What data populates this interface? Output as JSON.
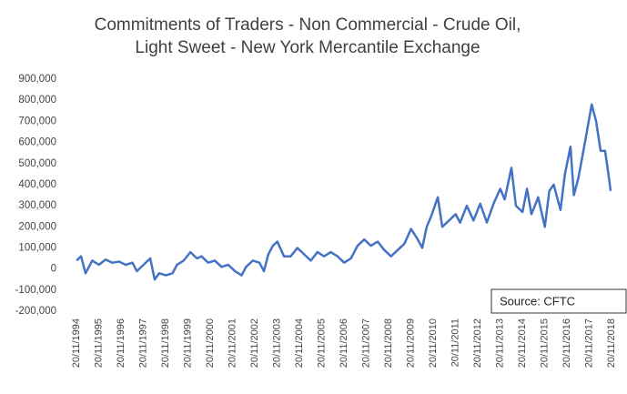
{
  "chart_data": {
    "type": "line",
    "title": [
      "Commitments of Traders - Non Commercial - Crude Oil,",
      "Light Sweet - New York Mercantile Exchange"
    ],
    "annotation": "Source: CFTC",
    "x": [
      1994.9,
      1995.1,
      1995.3,
      1995.6,
      1995.9,
      1996.2,
      1996.5,
      1996.8,
      1997.1,
      1997.4,
      1997.6,
      1997.9,
      1998.2,
      1998.4,
      1998.6,
      1998.9,
      1999.2,
      1999.4,
      1999.7,
      2000.0,
      2000.3,
      2000.5,
      2000.8,
      2001.1,
      2001.4,
      2001.7,
      2002.0,
      2002.3,
      2002.5,
      2002.8,
      2003.1,
      2003.3,
      2003.5,
      2003.7,
      2003.9,
      2004.2,
      2004.5,
      2004.8,
      2005.1,
      2005.4,
      2005.7,
      2006.0,
      2006.3,
      2006.6,
      2006.9,
      2007.2,
      2007.5,
      2007.8,
      2008.1,
      2008.4,
      2008.7,
      2009.0,
      2009.3,
      2009.6,
      2009.9,
      2010.2,
      2010.4,
      2010.6,
      2010.8,
      2011.1,
      2011.3,
      2011.6,
      2011.9,
      2012.1,
      2012.4,
      2012.7,
      2013.0,
      2013.3,
      2013.6,
      2013.9,
      2014.1,
      2014.3,
      2014.4,
      2014.6,
      2014.9,
      2015.1,
      2015.3,
      2015.6,
      2015.9,
      2016.1,
      2016.3,
      2016.6,
      2016.8,
      2017.05,
      2017.2,
      2017.4,
      2017.7,
      2018.0,
      2018.2,
      2018.4,
      2018.6,
      2018.75,
      2018.85
    ],
    "series": [
      {
        "name": "Non Commercial",
        "color": "#4472c4",
        "values": [
          40000,
          60000,
          -20000,
          40000,
          20000,
          45000,
          30000,
          35000,
          20000,
          30000,
          -10000,
          20000,
          50000,
          -50000,
          -20000,
          -30000,
          -20000,
          20000,
          40000,
          80000,
          50000,
          60000,
          30000,
          40000,
          10000,
          20000,
          -10000,
          -30000,
          10000,
          40000,
          30000,
          -10000,
          70000,
          110000,
          130000,
          60000,
          60000,
          100000,
          70000,
          40000,
          80000,
          60000,
          80000,
          60000,
          30000,
          50000,
          110000,
          140000,
          110000,
          130000,
          90000,
          60000,
          90000,
          120000,
          190000,
          140000,
          100000,
          200000,
          250000,
          340000,
          200000,
          230000,
          260000,
          220000,
          300000,
          230000,
          310000,
          220000,
          310000,
          380000,
          330000,
          430000,
          480000,
          300000,
          270000,
          380000,
          260000,
          340000,
          200000,
          370000,
          400000,
          280000,
          450000,
          580000,
          350000,
          430000,
          600000,
          780000,
          700000,
          560000,
          560000,
          450000,
          370000
        ]
      }
    ],
    "xlim": [
      1994.89,
      2018.89
    ],
    "xticks": [
      {
        "value": 1994.89,
        "label": "20/11/1994"
      },
      {
        "value": 1995.89,
        "label": "20/11/1995"
      },
      {
        "value": 1996.89,
        "label": "20/11/1996"
      },
      {
        "value": 1997.89,
        "label": "20/11/1997"
      },
      {
        "value": 1998.89,
        "label": "20/11/1998"
      },
      {
        "value": 1999.89,
        "label": "20/11/1999"
      },
      {
        "value": 2000.89,
        "label": "20/11/2000"
      },
      {
        "value": 2001.89,
        "label": "20/11/2001"
      },
      {
        "value": 2002.89,
        "label": "20/11/2002"
      },
      {
        "value": 2003.89,
        "label": "20/11/2003"
      },
      {
        "value": 2004.89,
        "label": "20/11/2004"
      },
      {
        "value": 2005.89,
        "label": "20/11/2005"
      },
      {
        "value": 2006.89,
        "label": "20/11/2006"
      },
      {
        "value": 2007.89,
        "label": "20/11/2007"
      },
      {
        "value": 2008.89,
        "label": "20/11/2008"
      },
      {
        "value": 2009.89,
        "label": "20/11/2009"
      },
      {
        "value": 2010.89,
        "label": "20/11/2010"
      },
      {
        "value": 2011.89,
        "label": "20/11/2011"
      },
      {
        "value": 2012.89,
        "label": "20/11/2012"
      },
      {
        "value": 2013.89,
        "label": "20/11/2013"
      },
      {
        "value": 2014.89,
        "label": "20/11/2014"
      },
      {
        "value": 2015.89,
        "label": "20/11/2015"
      },
      {
        "value": 2016.89,
        "label": "20/11/2016"
      },
      {
        "value": 2017.89,
        "label": "20/11/2017"
      },
      {
        "value": 2018.89,
        "label": "20/11/2018"
      }
    ],
    "ylim": [
      -200000,
      900000
    ],
    "yticks": [
      {
        "value": -200000,
        "label": "-200,000"
      },
      {
        "value": -100000,
        "label": "-100,000"
      },
      0,
      {
        "value": 100000,
        "label": "100,000"
      },
      {
        "value": 200000,
        "label": "200,000"
      },
      {
        "value": 300000,
        "label": "300,000"
      },
      {
        "value": 400000,
        "label": "400,000"
      },
      {
        "value": 500000,
        "label": "500,000"
      },
      {
        "value": 600000,
        "label": "600,000"
      },
      {
        "value": 700000,
        "label": "700,000"
      },
      {
        "value": 800000,
        "label": "800,000"
      },
      {
        "value": 900000,
        "label": "900,000"
      }
    ],
    "grid": false
  }
}
